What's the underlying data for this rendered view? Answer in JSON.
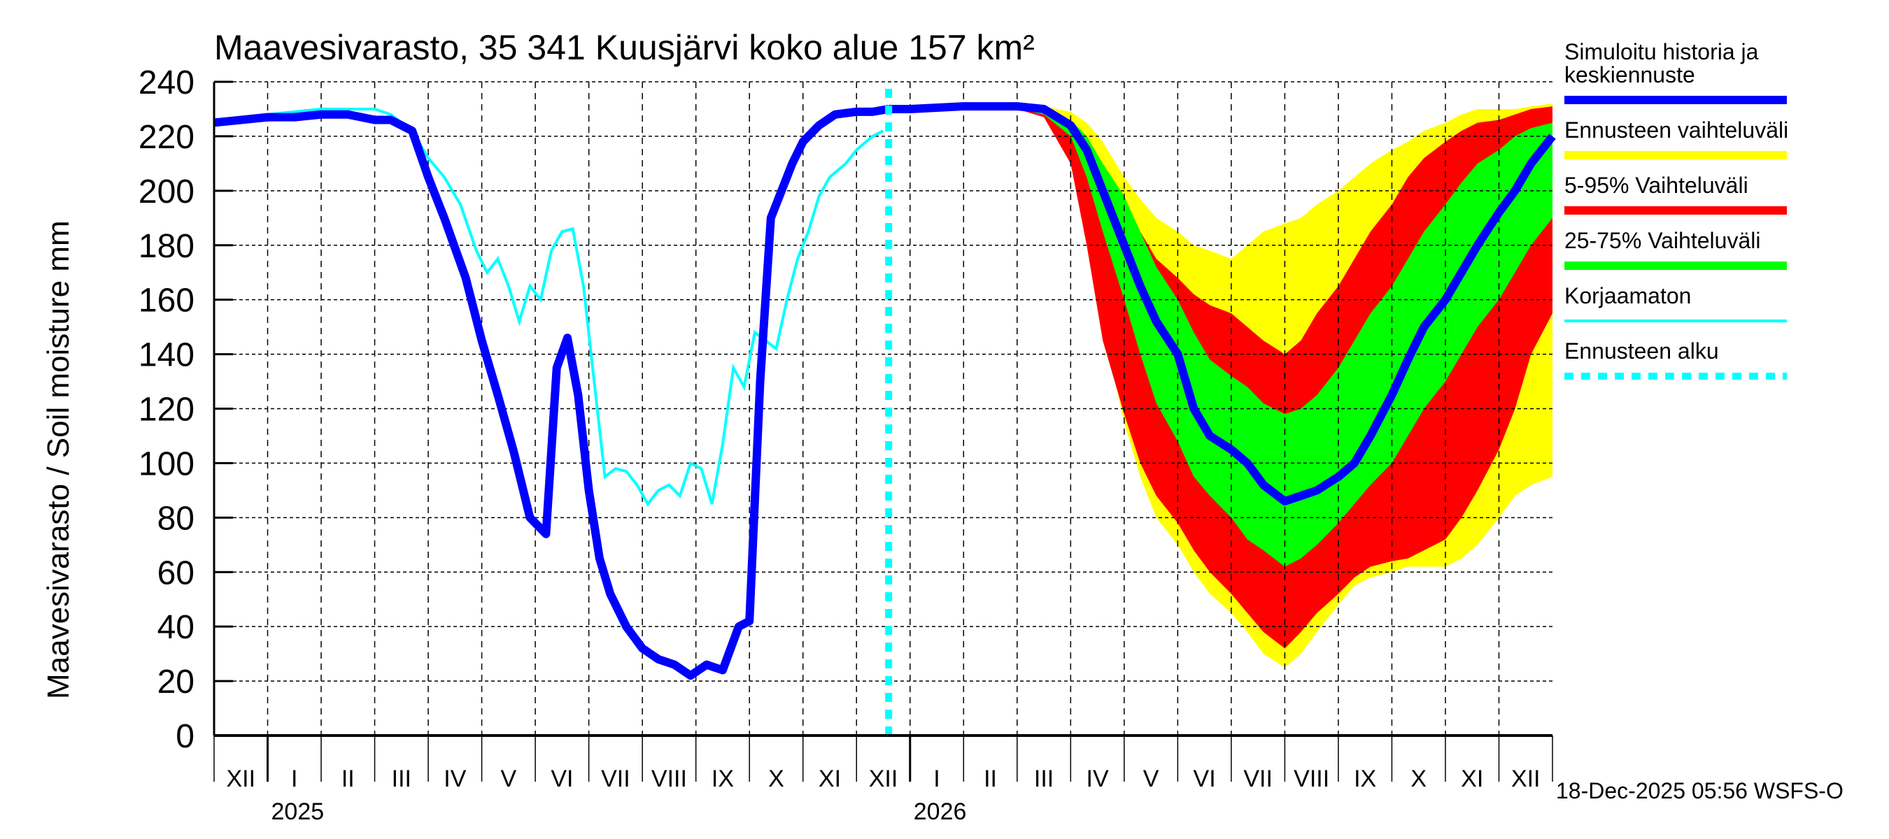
{
  "chart_data": {
    "type": "area",
    "title": "Maavesivarasto, 35 341 Kuusjärvi koko alue 157 km²",
    "ylabel": "Maavesivarasto / Soil moisture   mm",
    "xlabel": "",
    "ylim": [
      0,
      240
    ],
    "yticks": [
      0,
      20,
      40,
      60,
      80,
      100,
      120,
      140,
      160,
      180,
      200,
      220,
      240
    ],
    "xlim_months": [
      0,
      25
    ],
    "month_labels": [
      "XII",
      "I",
      "II",
      "III",
      "IV",
      "V",
      "VI",
      "VII",
      "VIII",
      "IX",
      "X",
      "XI",
      "XII",
      "I",
      "II",
      "III",
      "IV",
      "V",
      "VI",
      "VII",
      "VIII",
      "IX",
      "X",
      "XI",
      "XII"
    ],
    "year_labels": [
      {
        "label": "2025",
        "month": 1
      },
      {
        "label": "2026",
        "month": 13
      }
    ],
    "forecast_start_month": 12.6,
    "grid": true,
    "legend_position": "right",
    "legend": [
      {
        "label": "Simuloitu historia ja keskiennuste",
        "color": "#0000ff",
        "style": "thick"
      },
      {
        "label": "Ennusteen vaihteluväli",
        "color": "#ffff00",
        "style": "thick"
      },
      {
        "label": "5-95% Vaihteluväli",
        "color": "#ff0000",
        "style": "thick"
      },
      {
        "label": "25-75% Vaihteluväli",
        "color": "#00ff00",
        "style": "thick"
      },
      {
        "label": "Korjaamaton",
        "color": "#00ffff",
        "style": "thin"
      },
      {
        "label": "Ennusteen alku",
        "color": "#00ffff",
        "style": "dotted"
      }
    ],
    "series": [
      {
        "name": "Simuloitu historia",
        "color": "#0000ff",
        "x": [
          0,
          0.5,
          1,
          1.5,
          2,
          2.5,
          3,
          3.3,
          3.7,
          4,
          4.3,
          4.7,
          5,
          5.3,
          5.6,
          5.9,
          6.2,
          6.4,
          6.6,
          6.8,
          7,
          7.2,
          7.4,
          7.7,
          8,
          8.3,
          8.6,
          8.9,
          9.2,
          9.5,
          9.8,
          10,
          10.2,
          10.4,
          10.6,
          10.8,
          11,
          11.3,
          11.6,
          12,
          12.3,
          12.6
        ],
        "y": [
          225,
          226,
          227,
          227,
          228,
          228,
          226,
          226,
          222,
          205,
          190,
          168,
          145,
          125,
          104,
          80,
          74,
          135,
          146,
          125,
          90,
          65,
          52,
          40,
          32,
          28,
          26,
          22,
          26,
          24,
          40,
          42,
          130,
          190,
          200,
          210,
          218,
          224,
          228,
          229,
          229,
          230
        ]
      },
      {
        "name": "Korjaamaton",
        "color": "#00ffff",
        "x": [
          0,
          0.5,
          1,
          1.5,
          2,
          2.5,
          3,
          3.3,
          3.7,
          4,
          4.3,
          4.6,
          4.9,
          5.1,
          5.3,
          5.5,
          5.7,
          5.9,
          6.1,
          6.3,
          6.5,
          6.7,
          6.9,
          7.1,
          7.3,
          7.5,
          7.7,
          7.9,
          8.1,
          8.3,
          8.5,
          8.7,
          8.9,
          9.1,
          9.3,
          9.5,
          9.7,
          9.9,
          10.1,
          10.3,
          10.5,
          10.7,
          10.9,
          11.1,
          11.3,
          11.5,
          11.8,
          12,
          12.3,
          12.5
        ],
        "y": [
          226,
          227,
          228,
          229,
          230,
          230,
          230,
          228,
          222,
          212,
          205,
          195,
          178,
          170,
          175,
          165,
          152,
          165,
          160,
          178,
          185,
          186,
          165,
          130,
          95,
          98,
          97,
          92,
          85,
          90,
          92,
          88,
          100,
          98,
          85,
          107,
          135,
          128,
          148,
          145,
          142,
          160,
          175,
          185,
          198,
          205,
          210,
          215,
          220,
          222
        ]
      },
      {
        "name": "Keskiennuste",
        "color": "#0000ff",
        "x": [
          12.6,
          13,
          14,
          15,
          15.5,
          16,
          16.3,
          16.6,
          17,
          17.3,
          17.6,
          18,
          18.3,
          18.6,
          19,
          19.3,
          19.6,
          20,
          20.3,
          20.6,
          21,
          21.3,
          21.6,
          22,
          22.3,
          22.6,
          23,
          23.3,
          23.6,
          24,
          24.3,
          24.6,
          25
        ],
        "y": [
          230,
          230,
          231,
          231,
          230,
          224,
          215,
          200,
          180,
          165,
          152,
          140,
          120,
          110,
          105,
          100,
          92,
          86,
          88,
          90,
          95,
          100,
          110,
          125,
          138,
          150,
          160,
          170,
          180,
          192,
          200,
          210,
          220
        ]
      },
      {
        "name": "Ennusteen vaihteluväli",
        "color": "#ffff00",
        "x": [
          12.6,
          13,
          14,
          15,
          15.5,
          16,
          16.3,
          16.6,
          17,
          17.3,
          17.6,
          18,
          18.3,
          18.6,
          19,
          19.3,
          19.6,
          20,
          20.3,
          20.6,
          21,
          21.3,
          21.6,
          22,
          22.3,
          22.6,
          23,
          23.3,
          23.6,
          24,
          24.3,
          24.6,
          25
        ],
        "upper": [
          230,
          230,
          231,
          231,
          231,
          229,
          225,
          218,
          205,
          197,
          190,
          185,
          180,
          178,
          175,
          180,
          185,
          188,
          190,
          195,
          200,
          205,
          210,
          215,
          218,
          222,
          225,
          228,
          230,
          230,
          230,
          231,
          232
        ],
        "lower": [
          230,
          230,
          231,
          230,
          228,
          215,
          185,
          150,
          115,
          95,
          80,
          70,
          60,
          52,
          45,
          38,
          30,
          25,
          30,
          38,
          48,
          55,
          58,
          60,
          62,
          62,
          62,
          65,
          70,
          80,
          88,
          92,
          95
        ]
      },
      {
        "name": "5-95% Vaihteluväli",
        "color": "#ff0000",
        "x": [
          12.6,
          13,
          14,
          15,
          15.5,
          16,
          16.3,
          16.6,
          17,
          17.3,
          17.6,
          18,
          18.3,
          18.6,
          19,
          19.3,
          19.6,
          20,
          20.3,
          20.6,
          21,
          21.3,
          21.6,
          22,
          22.3,
          22.6,
          23,
          23.3,
          23.6,
          24,
          24.3,
          24.6,
          25
        ],
        "upper": [
          230,
          230,
          231,
          231,
          230,
          226,
          218,
          208,
          195,
          185,
          175,
          168,
          162,
          158,
          155,
          150,
          145,
          140,
          145,
          155,
          165,
          175,
          185,
          195,
          205,
          212,
          218,
          222,
          225,
          226,
          228,
          230,
          231
        ],
        "lower": [
          230,
          230,
          231,
          230,
          227,
          210,
          180,
          145,
          118,
          100,
          88,
          78,
          68,
          60,
          52,
          45,
          38,
          32,
          38,
          45,
          52,
          58,
          62,
          64,
          65,
          68,
          72,
          80,
          90,
          105,
          120,
          140,
          155
        ]
      },
      {
        "name": "25-75% Vaihteluväli",
        "color": "#00ff00",
        "x": [
          12.6,
          13,
          14,
          15,
          15.5,
          16,
          16.3,
          16.6,
          17,
          17.3,
          17.6,
          18,
          18.3,
          18.6,
          19,
          19.3,
          19.6,
          20,
          20.3,
          20.6,
          21,
          21.3,
          21.6,
          22,
          22.3,
          22.6,
          23,
          23.3,
          23.6,
          24,
          24.3,
          24.6,
          25
        ],
        "upper": [
          230,
          230,
          231,
          231,
          230,
          226,
          220,
          210,
          198,
          185,
          172,
          160,
          148,
          138,
          132,
          128,
          122,
          118,
          120,
          125,
          135,
          145,
          155,
          165,
          175,
          185,
          195,
          203,
          210,
          215,
          220,
          223,
          225
        ],
        "lower": [
          230,
          230,
          231,
          230,
          228,
          220,
          205,
          185,
          160,
          140,
          122,
          108,
          95,
          88,
          80,
          72,
          68,
          62,
          65,
          70,
          78,
          85,
          92,
          100,
          110,
          120,
          130,
          140,
          150,
          160,
          170,
          180,
          190
        ]
      }
    ]
  },
  "footer": {
    "timestamp": "18-Dec-2025 05:56 WSFS-O"
  }
}
